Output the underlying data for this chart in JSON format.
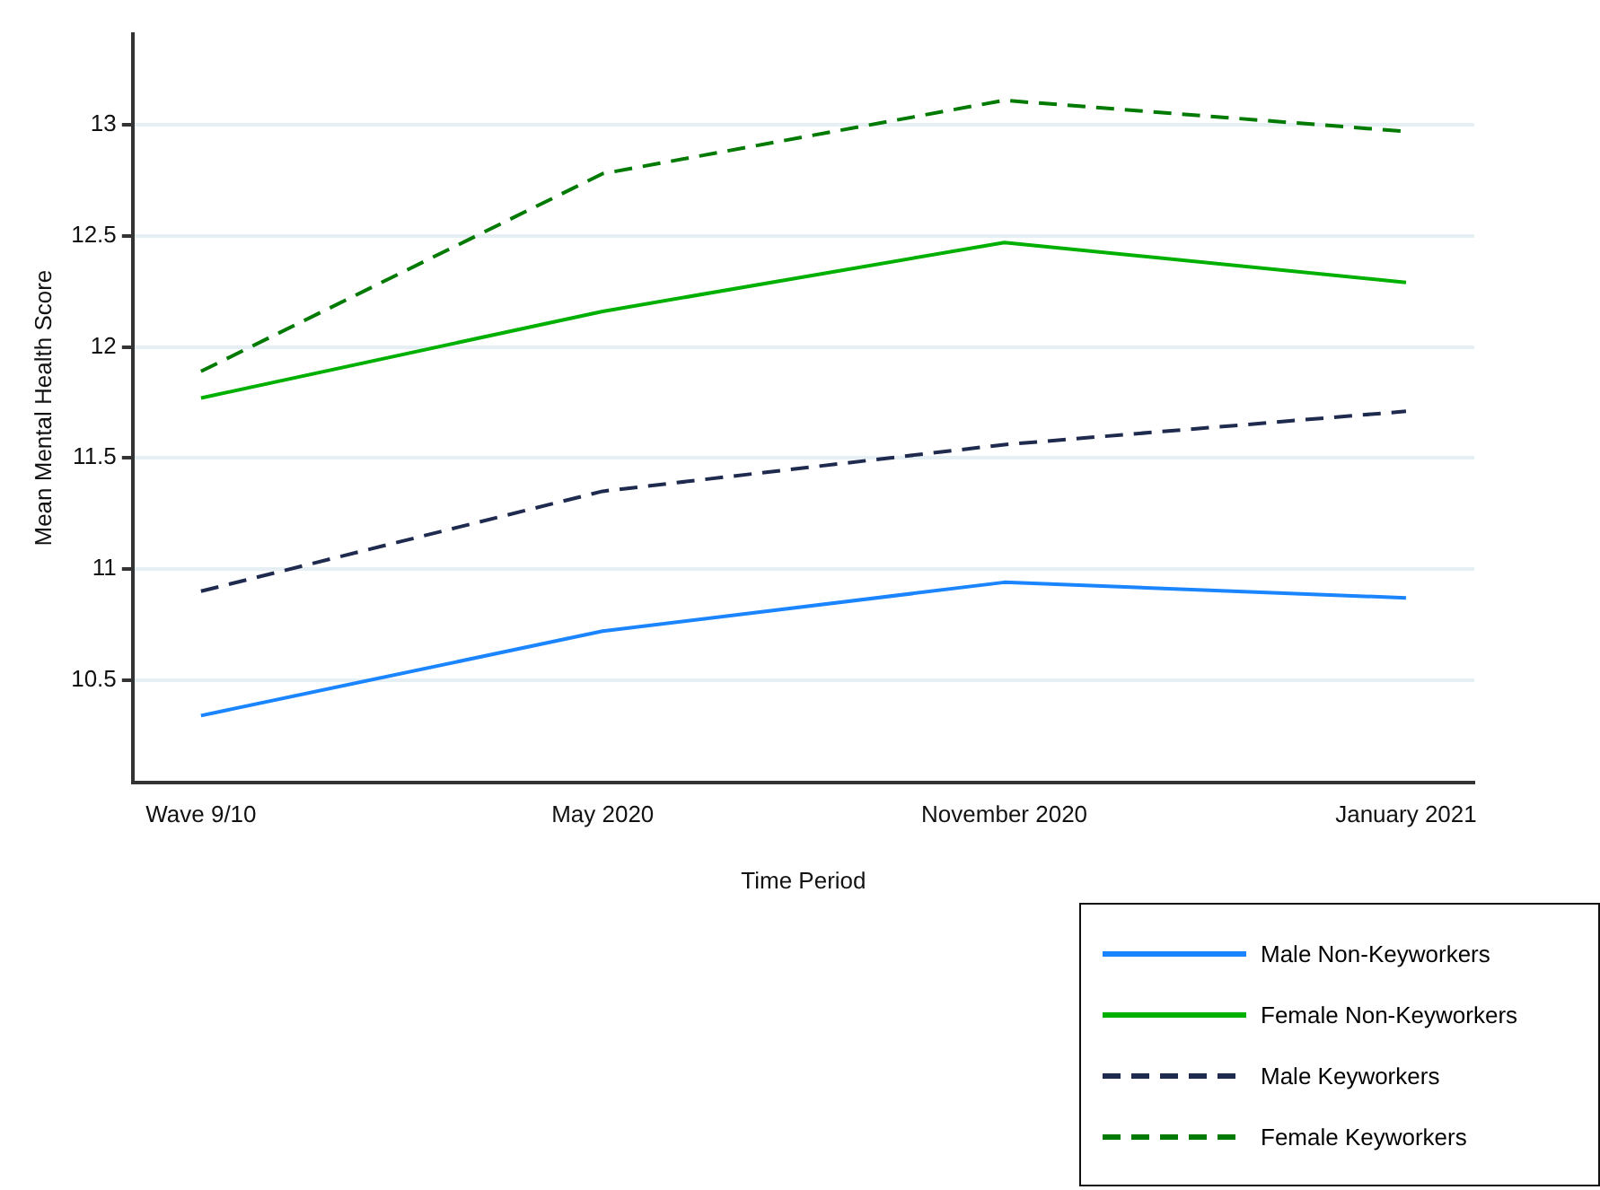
{
  "chart_data": {
    "type": "line",
    "xlabel": "Time Period",
    "ylabel": "Mean Mental Health Score",
    "categories": [
      "Wave 9/10",
      "May 2020",
      "November 2020",
      "January 2021"
    ],
    "series": [
      {
        "name": "Male Non-Keyworkers",
        "color": "#1a85ff",
        "line_style": "solid",
        "values": [
          10.34,
          10.72,
          10.94,
          10.87
        ]
      },
      {
        "name": "Female Non-Keyworkers",
        "color": "#00b000",
        "line_style": "solid",
        "values": [
          11.77,
          12.16,
          12.47,
          12.29
        ]
      },
      {
        "name": "Male Keyworkers",
        "color": "#1f2a4f",
        "line_style": "dashed",
        "values": [
          10.9,
          11.35,
          11.56,
          11.71
        ]
      },
      {
        "name": "Female Keyworkers",
        "color": "#007a00",
        "line_style": "dashed",
        "values": [
          11.89,
          12.78,
          13.11,
          12.97
        ]
      }
    ],
    "ylim": [
      10.04,
      13.41
    ],
    "yticks": [
      10.5,
      11,
      11.5,
      12,
      12.5,
      13
    ],
    "grid": "y",
    "legend": "bottom right",
    "marker": "none"
  }
}
